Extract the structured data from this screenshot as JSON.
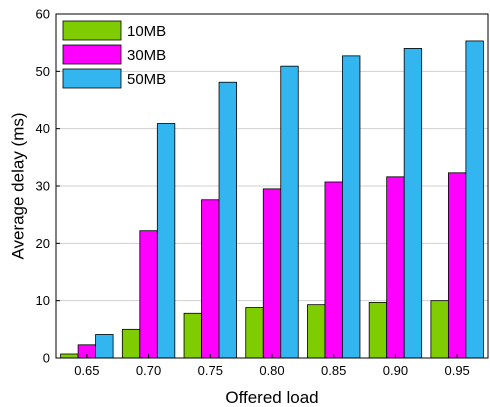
{
  "chart_data": {
    "type": "bar",
    "title": "",
    "xlabel": "Offered load",
    "ylabel": "Average delay (ms)",
    "categories": [
      "0.65",
      "0.70",
      "0.75",
      "0.80",
      "0.85",
      "0.90",
      "0.95"
    ],
    "ylim": [
      0,
      60
    ],
    "yticks": [
      0,
      10,
      20,
      30,
      40,
      50,
      60
    ],
    "grid": "horizontal",
    "legend_position": "top-left",
    "series": [
      {
        "name": "10MB",
        "color": "#7fcc00",
        "values": [
          0.7,
          5.0,
          7.8,
          8.8,
          9.3,
          9.7,
          10.0
        ]
      },
      {
        "name": "30MB",
        "color": "#ff00ff",
        "values": [
          2.3,
          22.2,
          27.6,
          29.5,
          30.7,
          31.6,
          32.3
        ]
      },
      {
        "name": "50MB",
        "color": "#33b5f0",
        "values": [
          4.1,
          40.9,
          48.1,
          50.9,
          52.7,
          54.0,
          55.3
        ]
      }
    ]
  }
}
